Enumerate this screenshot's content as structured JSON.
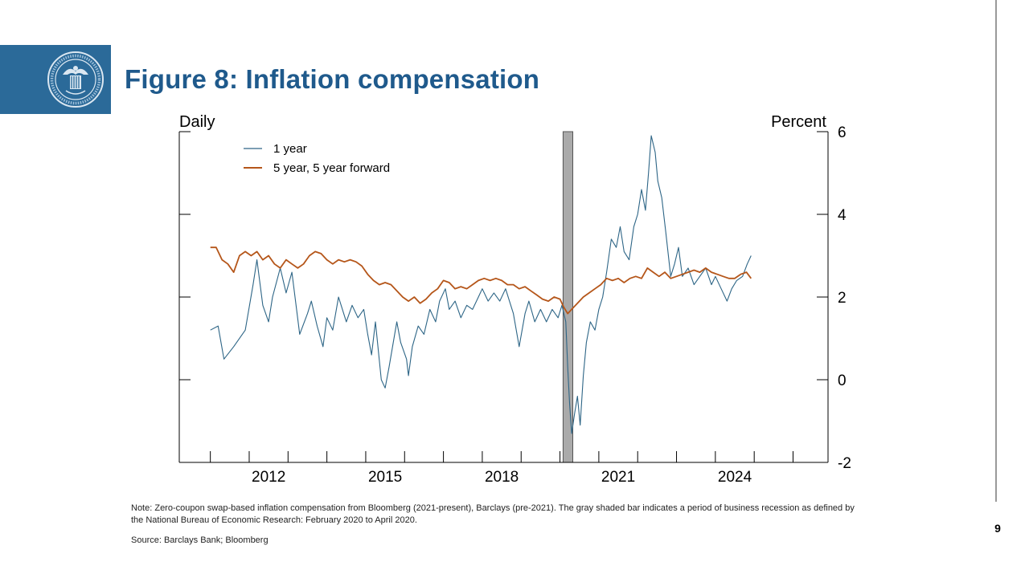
{
  "slide": {
    "title": "Figure 8:  Inflation compensation",
    "page_number": "9",
    "note": "Note: Zero-coupon swap-based inflation compensation from Bloomberg (2021-present), Barclays (pre-2021). The gray shaded bar indicates a period of business recession as defined by the National Bureau of Economic Research: February 2020 to April 2020.",
    "source": "Source: Barclays Bank; Bloomberg",
    "colors": {
      "title": "#1f5a8c",
      "logo_bg": "#2b6a99"
    }
  },
  "chart_data": {
    "type": "line",
    "frequency_label": "Daily",
    "ylabel": "Percent",
    "ylim": [
      -2,
      6
    ],
    "yticks": [
      "6",
      "4",
      "2",
      "0",
      "-2"
    ],
    "xlim": [
      2010.2,
      2026.9
    ],
    "xticks": [
      "2012",
      "2015",
      "2018",
      "2021",
      "2024"
    ],
    "recession": {
      "start": 2020.08,
      "end": 2020.33,
      "color": "#aaaaaa"
    },
    "legend_placement": "top-left",
    "series": [
      {
        "name": "1 year",
        "color": "#2d6586",
        "points": [
          [
            2011.0,
            1.2
          ],
          [
            2011.2,
            1.3
          ],
          [
            2011.35,
            0.5
          ],
          [
            2011.6,
            0.8
          ],
          [
            2011.9,
            1.2
          ],
          [
            2012.1,
            2.3
          ],
          [
            2012.2,
            2.9
          ],
          [
            2012.35,
            1.8
          ],
          [
            2012.5,
            1.4
          ],
          [
            2012.6,
            2.0
          ],
          [
            2012.8,
            2.7
          ],
          [
            2012.95,
            2.1
          ],
          [
            2013.1,
            2.6
          ],
          [
            2013.3,
            1.1
          ],
          [
            2013.5,
            1.6
          ],
          [
            2013.6,
            1.9
          ],
          [
            2013.75,
            1.3
          ],
          [
            2013.9,
            0.8
          ],
          [
            2014.0,
            1.5
          ],
          [
            2014.15,
            1.2
          ],
          [
            2014.3,
            2.0
          ],
          [
            2014.5,
            1.4
          ],
          [
            2014.65,
            1.8
          ],
          [
            2014.8,
            1.5
          ],
          [
            2014.95,
            1.7
          ],
          [
            2015.05,
            1.1
          ],
          [
            2015.15,
            0.6
          ],
          [
            2015.25,
            1.4
          ],
          [
            2015.4,
            0.0
          ],
          [
            2015.5,
            -0.2
          ],
          [
            2015.6,
            0.3
          ],
          [
            2015.8,
            1.4
          ],
          [
            2015.9,
            0.9
          ],
          [
            2016.05,
            0.5
          ],
          [
            2016.1,
            0.1
          ],
          [
            2016.2,
            0.8
          ],
          [
            2016.35,
            1.3
          ],
          [
            2016.5,
            1.1
          ],
          [
            2016.65,
            1.7
          ],
          [
            2016.8,
            1.4
          ],
          [
            2016.9,
            1.9
          ],
          [
            2017.05,
            2.2
          ],
          [
            2017.15,
            1.7
          ],
          [
            2017.3,
            1.9
          ],
          [
            2017.45,
            1.5
          ],
          [
            2017.6,
            1.8
          ],
          [
            2017.75,
            1.7
          ],
          [
            2017.9,
            2.0
          ],
          [
            2018.0,
            2.2
          ],
          [
            2018.15,
            1.9
          ],
          [
            2018.3,
            2.1
          ],
          [
            2018.45,
            1.9
          ],
          [
            2018.6,
            2.2
          ],
          [
            2018.8,
            1.6
          ],
          [
            2018.95,
            0.8
          ],
          [
            2019.1,
            1.6
          ],
          [
            2019.2,
            1.9
          ],
          [
            2019.35,
            1.4
          ],
          [
            2019.5,
            1.7
          ],
          [
            2019.65,
            1.4
          ],
          [
            2019.8,
            1.7
          ],
          [
            2019.95,
            1.5
          ],
          [
            2020.05,
            1.8
          ],
          [
            2020.15,
            1.4
          ],
          [
            2020.2,
            0.3
          ],
          [
            2020.25,
            -0.6
          ],
          [
            2020.3,
            -1.3
          ],
          [
            2020.38,
            -0.8
          ],
          [
            2020.45,
            -0.4
          ],
          [
            2020.52,
            -1.1
          ],
          [
            2020.6,
            0.1
          ],
          [
            2020.68,
            0.9
          ],
          [
            2020.78,
            1.4
          ],
          [
            2020.9,
            1.2
          ],
          [
            2021.0,
            1.7
          ],
          [
            2021.1,
            2.0
          ],
          [
            2021.2,
            2.6
          ],
          [
            2021.32,
            3.4
          ],
          [
            2021.45,
            3.2
          ],
          [
            2021.55,
            3.7
          ],
          [
            2021.65,
            3.1
          ],
          [
            2021.78,
            2.9
          ],
          [
            2021.9,
            3.7
          ],
          [
            2022.0,
            4.0
          ],
          [
            2022.1,
            4.6
          ],
          [
            2022.2,
            4.1
          ],
          [
            2022.28,
            5.0
          ],
          [
            2022.35,
            5.9
          ],
          [
            2022.45,
            5.5
          ],
          [
            2022.52,
            4.8
          ],
          [
            2022.62,
            4.4
          ],
          [
            2022.72,
            3.6
          ],
          [
            2022.85,
            2.5
          ],
          [
            2022.95,
            2.8
          ],
          [
            2023.05,
            3.2
          ],
          [
            2023.15,
            2.5
          ],
          [
            2023.3,
            2.7
          ],
          [
            2023.45,
            2.3
          ],
          [
            2023.6,
            2.5
          ],
          [
            2023.75,
            2.7
          ],
          [
            2023.9,
            2.3
          ],
          [
            2024.0,
            2.5
          ],
          [
            2024.15,
            2.2
          ],
          [
            2024.3,
            1.9
          ],
          [
            2024.42,
            2.2
          ],
          [
            2024.55,
            2.4
          ],
          [
            2024.7,
            2.5
          ],
          [
            2024.82,
            2.8
          ],
          [
            2024.92,
            3.0
          ]
        ]
      },
      {
        "name": "5 year, 5 year forward",
        "color": "#b5561a",
        "points": [
          [
            2011.0,
            3.2
          ],
          [
            2011.15,
            3.2
          ],
          [
            2011.3,
            2.9
          ],
          [
            2011.45,
            2.8
          ],
          [
            2011.6,
            2.6
          ],
          [
            2011.75,
            3.0
          ],
          [
            2011.9,
            3.1
          ],
          [
            2012.05,
            3.0
          ],
          [
            2012.2,
            3.1
          ],
          [
            2012.35,
            2.9
          ],
          [
            2012.5,
            3.0
          ],
          [
            2012.65,
            2.8
          ],
          [
            2012.8,
            2.7
          ],
          [
            2012.95,
            2.9
          ],
          [
            2013.1,
            2.8
          ],
          [
            2013.25,
            2.7
          ],
          [
            2013.4,
            2.8
          ],
          [
            2013.55,
            3.0
          ],
          [
            2013.7,
            3.1
          ],
          [
            2013.85,
            3.05
          ],
          [
            2014.0,
            2.9
          ],
          [
            2014.15,
            2.8
          ],
          [
            2014.3,
            2.9
          ],
          [
            2014.45,
            2.85
          ],
          [
            2014.6,
            2.9
          ],
          [
            2014.75,
            2.85
          ],
          [
            2014.9,
            2.75
          ],
          [
            2015.05,
            2.55
          ],
          [
            2015.2,
            2.4
          ],
          [
            2015.35,
            2.3
          ],
          [
            2015.5,
            2.35
          ],
          [
            2015.65,
            2.3
          ],
          [
            2015.8,
            2.15
          ],
          [
            2015.95,
            2.0
          ],
          [
            2016.1,
            1.9
          ],
          [
            2016.25,
            2.0
          ],
          [
            2016.4,
            1.85
          ],
          [
            2016.55,
            1.95
          ],
          [
            2016.7,
            2.1
          ],
          [
            2016.85,
            2.2
          ],
          [
            2017.0,
            2.4
          ],
          [
            2017.15,
            2.35
          ],
          [
            2017.3,
            2.2
          ],
          [
            2017.45,
            2.25
          ],
          [
            2017.6,
            2.2
          ],
          [
            2017.75,
            2.3
          ],
          [
            2017.9,
            2.4
          ],
          [
            2018.05,
            2.45
          ],
          [
            2018.2,
            2.4
          ],
          [
            2018.35,
            2.45
          ],
          [
            2018.5,
            2.4
          ],
          [
            2018.65,
            2.3
          ],
          [
            2018.8,
            2.3
          ],
          [
            2018.95,
            2.2
          ],
          [
            2019.1,
            2.25
          ],
          [
            2019.25,
            2.15
          ],
          [
            2019.4,
            2.05
          ],
          [
            2019.55,
            1.95
          ],
          [
            2019.7,
            1.9
          ],
          [
            2019.85,
            2.0
          ],
          [
            2020.0,
            1.95
          ],
          [
            2020.1,
            1.75
          ],
          [
            2020.2,
            1.6
          ],
          [
            2020.3,
            1.7
          ],
          [
            2020.45,
            1.85
          ],
          [
            2020.6,
            2.0
          ],
          [
            2020.75,
            2.1
          ],
          [
            2020.9,
            2.2
          ],
          [
            2021.05,
            2.3
          ],
          [
            2021.2,
            2.45
          ],
          [
            2021.35,
            2.4
          ],
          [
            2021.5,
            2.45
          ],
          [
            2021.65,
            2.35
          ],
          [
            2021.8,
            2.45
          ],
          [
            2021.95,
            2.5
          ],
          [
            2022.1,
            2.45
          ],
          [
            2022.25,
            2.7
          ],
          [
            2022.4,
            2.6
          ],
          [
            2022.55,
            2.5
          ],
          [
            2022.7,
            2.6
          ],
          [
            2022.85,
            2.45
          ],
          [
            2023.0,
            2.5
          ],
          [
            2023.15,
            2.55
          ],
          [
            2023.3,
            2.6
          ],
          [
            2023.45,
            2.65
          ],
          [
            2023.6,
            2.6
          ],
          [
            2023.75,
            2.7
          ],
          [
            2023.9,
            2.6
          ],
          [
            2024.05,
            2.55
          ],
          [
            2024.2,
            2.5
          ],
          [
            2024.35,
            2.45
          ],
          [
            2024.5,
            2.45
          ],
          [
            2024.65,
            2.55
          ],
          [
            2024.8,
            2.6
          ],
          [
            2024.92,
            2.45
          ]
        ]
      }
    ]
  }
}
